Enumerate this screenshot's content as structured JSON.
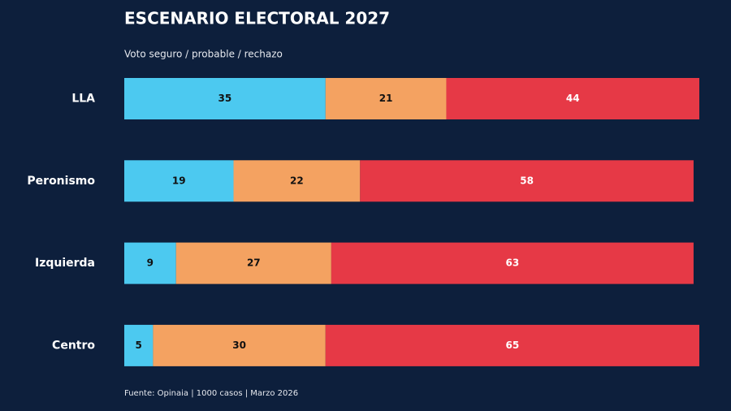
{
  "chart_data": {
    "type": "stacked_barh",
    "title": "ESCENARIO ELECTORAL 2027",
    "subtitle": "Voto seguro / probable / rechazo",
    "source": "Fuente: Opinaia | 1000 casos | Marzo 2026",
    "categories": [
      "LLA",
      "Peronismo",
      "Izquierda",
      "Centro"
    ],
    "series": [
      {
        "color": "#4cc9f0",
        "values": [
          35,
          19,
          9,
          5
        ]
      },
      {
        "color": "#f4a261",
        "values": [
          21,
          22,
          27,
          30
        ]
      },
      {
        "color": "#e63946",
        "values": [
          44,
          58,
          63,
          65
        ]
      }
    ],
    "xlim": [
      0,
      100
    ]
  }
}
